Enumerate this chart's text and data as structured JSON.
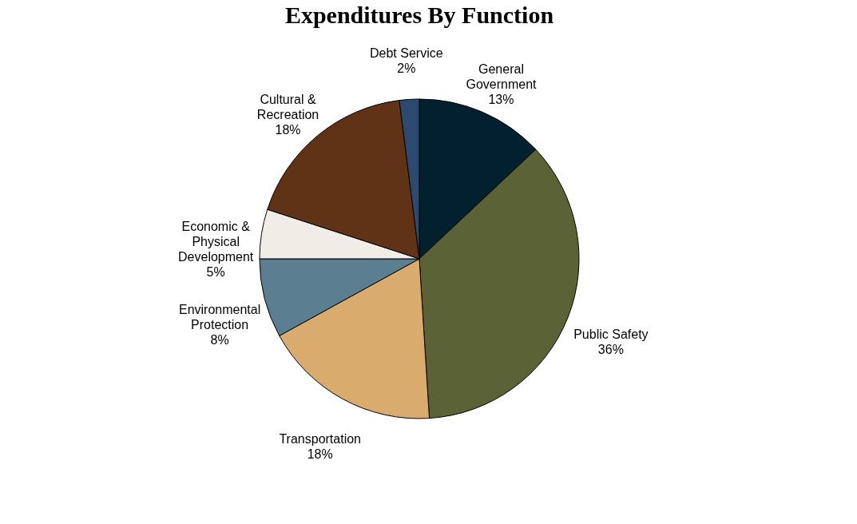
{
  "chart_data": {
    "type": "pie",
    "title": "Expenditures By Function",
    "categories": [
      "General Government",
      "Public Safety",
      "Transportation",
      "Environmental Protection",
      "Economic & Physical Development",
      "Cultural & Recreation",
      "Debt Service"
    ],
    "values": [
      13,
      36,
      18,
      8,
      5,
      18,
      2
    ],
    "colors": [
      "#03202f",
      "#5b6236",
      "#d9ab6c",
      "#5b7f90",
      "#f0ece6",
      "#603316",
      "#2c4a70"
    ],
    "value_labels": [
      "13%",
      "36%",
      "18%",
      "8%",
      "5%",
      "18%",
      "2%"
    ],
    "legend": false
  }
}
